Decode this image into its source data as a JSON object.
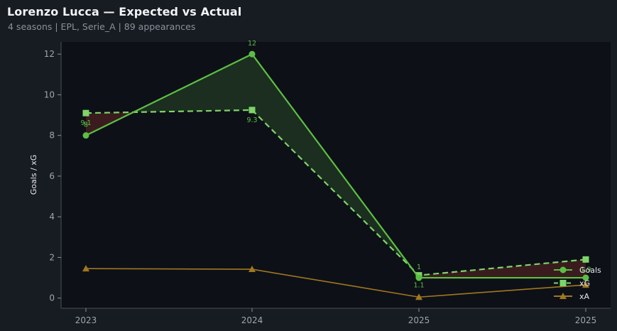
{
  "header": {
    "title": "Lorenzo Lucca — Expected vs Actual",
    "subtitle": "4 seasons | EPL, Serie_A | 89 appearances"
  },
  "chart_data": {
    "type": "line",
    "title": "Lorenzo Lucca — Expected vs Actual",
    "subtitle": "4 seasons | EPL, Serie_A | 89 appearances",
    "xlabel": "",
    "ylabel": "Goals / xG",
    "categories": [
      "2023",
      "2024",
      "2025",
      "2025"
    ],
    "ylim": [
      -0.5,
      12.6
    ],
    "yticks": [
      0,
      2,
      4,
      6,
      8,
      10,
      12
    ],
    "grid": false,
    "legend_position": "bottom-right",
    "series": [
      {
        "name": "Goals",
        "values": [
          8,
          12,
          1,
          1
        ],
        "labels": [
          "8",
          "12",
          "1",
          ""
        ],
        "color": "#5cbf43",
        "style": "solid",
        "marker": "circle"
      },
      {
        "name": "xG",
        "values": [
          9.1,
          9.25,
          1.12,
          1.9
        ],
        "labels": [
          "9.1",
          "9.3",
          "1.1",
          "1.9"
        ],
        "color": "#7ed46a",
        "style": "dashed",
        "marker": "square"
      },
      {
        "name": "xA",
        "values": [
          1.45,
          1.42,
          0.05,
          0.65
        ],
        "labels": [],
        "color": "#a0781f",
        "style": "solid",
        "marker": "triangle"
      }
    ],
    "fill_over_color": "#1b2e1f",
    "fill_under_color": "#3a1c1e"
  }
}
